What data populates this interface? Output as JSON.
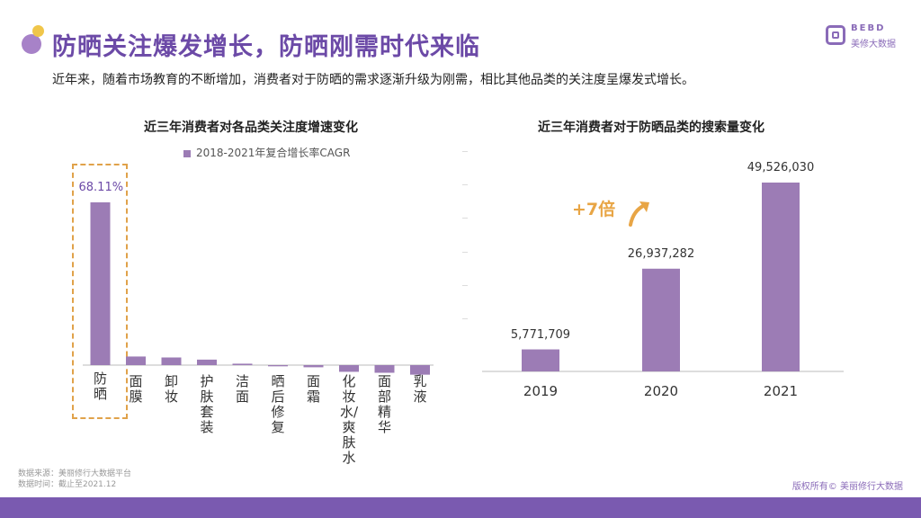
{
  "header": {
    "title": "防晒关注爆发增长，防晒刚需时代来临",
    "subtitle": "近年来，随着市场教育的不断增加，消费者对于防晒的需求逐渐升级为刚需，相比其他品类的关注度呈爆发式增长。",
    "logo_en": "BEBD",
    "logo_cn": "美修大数据"
  },
  "colors": {
    "bar": "#9c7cb5",
    "accent": "#6c4aa7",
    "highlight": "#e0a24a",
    "growth": "#e8a545"
  },
  "chart_data": [
    {
      "type": "bar",
      "title": "近三年消费者对各品类关注度增速变化",
      "legend": "2018-2021年复合增长率CAGR",
      "categories": [
        "防晒",
        "面膜",
        "卸妆",
        "护肤套装",
        "洁面",
        "晒后修复",
        "面霜",
        "化妆水/爽肤水",
        "面部精华",
        "乳液"
      ],
      "values": [
        68.11,
        3.6,
        3.2,
        2.3,
        0.6,
        -0.5,
        -0.9,
        -2.8,
        -3.2,
        -4.0
      ],
      "data_labels": {
        "防晒": "68.11%"
      },
      "ylim": [
        -6,
        80
      ]
    },
    {
      "type": "bar",
      "title": "近三年消费者对于防晒品类的搜索量变化",
      "categories": [
        "2019",
        "2020",
        "2021"
      ],
      "values": [
        5771709,
        26937282,
        49526030
      ],
      "value_labels": [
        "5,771,709",
        "26,937,282",
        "49,526,030"
      ],
      "annotation": "+7倍",
      "ylim": [
        0,
        56000000
      ]
    }
  ],
  "footer": {
    "source": "数据来源：美丽修行大数据平台",
    "time": "数据时间：截止至2021.12",
    "copyright": "版权所有© 美丽修行大数据"
  }
}
